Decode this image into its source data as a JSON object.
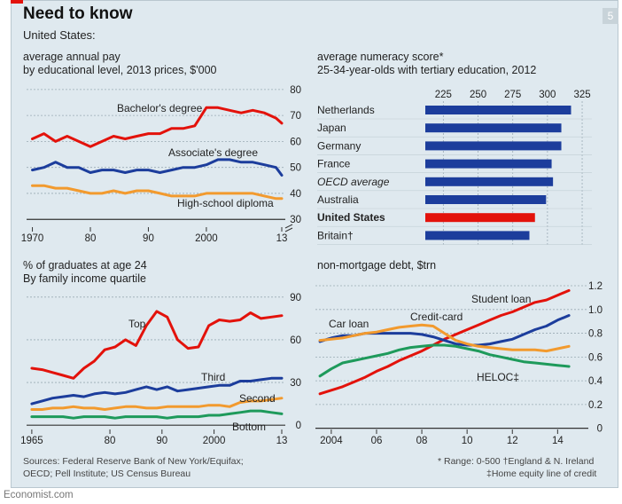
{
  "header": {
    "title": "Need to know",
    "page_number": "5",
    "subtitle": "United States:"
  },
  "colors": {
    "red": "#e3120b",
    "blue": "#1c3d9c",
    "orange": "#f29a2e",
    "green": "#1e9a5b",
    "bg": "#dfe9ef",
    "grid": "#9aaab4"
  },
  "chart_data": [
    {
      "type": "line",
      "title": "average annual pay",
      "subtitle": "by educational level, 2013 prices, $'000",
      "x": [
        1970,
        1972,
        1974,
        1976,
        1978,
        1980,
        1982,
        1984,
        1986,
        1988,
        1990,
        1992,
        1994,
        1996,
        1998,
        2000,
        2002,
        2004,
        2006,
        2008,
        2010,
        2012,
        2013
      ],
      "xlim": [
        1969,
        2013
      ],
      "ylim": [
        27,
        82
      ],
      "x_ticks": [
        1970,
        1980,
        1990,
        2000,
        2013
      ],
      "x_tick_labels": [
        "1970",
        "80",
        "90",
        "2000",
        "13"
      ],
      "y_ticks": [
        30,
        40,
        50,
        60,
        70,
        80
      ],
      "y_tick_labels": [
        "30",
        "40",
        "50",
        "60",
        "70",
        "80"
      ],
      "series": [
        {
          "name": "Bachelor's degree",
          "color": "red",
          "values": [
            61,
            63,
            60,
            62,
            60,
            58,
            60,
            62,
            61,
            62,
            63,
            63,
            65,
            65,
            66,
            73,
            73,
            72,
            71,
            72,
            71,
            69,
            67
          ]
        },
        {
          "name": "Associate's degree",
          "color": "blue",
          "values": [
            49,
            50,
            52,
            50,
            50,
            48,
            49,
            49,
            48,
            49,
            49,
            48,
            49,
            50,
            50,
            51,
            53,
            53,
            52,
            52,
            51,
            50,
            47
          ]
        },
        {
          "name": "High-school diploma",
          "color": "orange",
          "values": [
            43,
            43,
            42,
            42,
            41,
            40,
            40,
            41,
            40,
            41,
            41,
            40,
            39,
            39,
            39,
            40,
            40,
            40,
            40,
            40,
            39,
            38,
            38
          ]
        }
      ]
    },
    {
      "type": "bar",
      "title": "average numeracy score*",
      "subtitle": "25-34-year-olds with tertiary education, 2012",
      "categories": [
        "Netherlands",
        "Japan",
        "Germany",
        "France",
        "OECD average",
        "Australia",
        "United States",
        "Britain†"
      ],
      "values": [
        317,
        310,
        310,
        303,
        304,
        299,
        291,
        287
      ],
      "highlight": [
        false,
        false,
        false,
        false,
        false,
        false,
        true,
        false
      ],
      "italic": [
        false,
        false,
        false,
        false,
        true,
        false,
        false,
        false
      ],
      "bold": [
        false,
        false,
        false,
        false,
        false,
        false,
        true,
        false
      ],
      "xlim": [
        212,
        332
      ],
      "x_ticks": [
        225,
        250,
        275,
        300,
        325
      ]
    },
    {
      "type": "line",
      "title": "% of graduates at age 24",
      "subtitle": "By family income quartile",
      "x": [
        1965,
        1967,
        1969,
        1971,
        1973,
        1975,
        1977,
        1979,
        1981,
        1983,
        1985,
        1987,
        1989,
        1991,
        1993,
        1995,
        1997,
        1999,
        2001,
        2003,
        2005,
        2007,
        2009,
        2011,
        2013
      ],
      "xlim": [
        1964,
        2013
      ],
      "ylim": [
        -3,
        93
      ],
      "x_ticks": [
        1965,
        1980,
        1990,
        2000,
        2013
      ],
      "x_tick_labels": [
        "1965",
        "80",
        "90",
        "2000",
        "13"
      ],
      "y_ticks": [
        0,
        30,
        60,
        90
      ],
      "y_tick_labels": [
        "0",
        "30",
        "60",
        "90"
      ],
      "series": [
        {
          "name": "Top",
          "color": "red",
          "values": [
            40,
            39,
            37,
            35,
            33,
            40,
            45,
            53,
            55,
            60,
            56,
            70,
            80,
            76,
            60,
            54,
            55,
            70,
            74,
            73,
            74,
            79,
            75,
            76,
            77
          ]
        },
        {
          "name": "Third",
          "color": "blue",
          "values": [
            15,
            17,
            19,
            20,
            21,
            20,
            22,
            23,
            22,
            23,
            25,
            27,
            25,
            27,
            24,
            25,
            26,
            27,
            28,
            28,
            31,
            31,
            32,
            33,
            33
          ]
        },
        {
          "name": "Second",
          "color": "orange",
          "values": [
            11,
            11,
            12,
            12,
            13,
            12,
            12,
            11,
            12,
            13,
            13,
            12,
            12,
            13,
            13,
            13,
            13,
            14,
            14,
            13,
            16,
            17,
            17,
            18,
            19
          ]
        },
        {
          "name": "Bottom",
          "color": "green",
          "values": [
            6,
            6,
            6,
            6,
            5,
            6,
            6,
            6,
            5,
            6,
            6,
            6,
            6,
            5,
            6,
            6,
            6,
            7,
            7,
            8,
            9,
            10,
            10,
            9,
            8
          ]
        }
      ]
    },
    {
      "type": "line",
      "title": "non-mortgage debt, $trn",
      "x": [
        2003.5,
        2004,
        2004.5,
        2005,
        2005.5,
        2006,
        2006.5,
        2007,
        2007.5,
        2008,
        2008.5,
        2009,
        2009.5,
        2010,
        2010.5,
        2011,
        2011.5,
        2012,
        2012.5,
        2013,
        2013.5,
        2014,
        2014.5
      ],
      "xlim": [
        2003.3,
        2015.2
      ],
      "ylim": [
        -0.01,
        1.23
      ],
      "x_ticks": [
        2004,
        2006,
        2008,
        2010,
        2012,
        2014
      ],
      "x_tick_labels": [
        "2004",
        "06",
        "08",
        "10",
        "12",
        "14"
      ],
      "y_ticks": [
        0,
        0.2,
        0.4,
        0.6,
        0.8,
        1.0,
        1.2
      ],
      "y_tick_labels": [
        "0",
        "0.2",
        "0.4",
        "0.6",
        "0.8",
        "1.0",
        "1.2"
      ],
      "series": [
        {
          "name": "Student loan",
          "color": "red",
          "values": [
            0.29,
            0.32,
            0.35,
            0.39,
            0.43,
            0.48,
            0.52,
            0.57,
            0.61,
            0.65,
            0.7,
            0.75,
            0.79,
            0.83,
            0.87,
            0.91,
            0.95,
            0.98,
            1.02,
            1.06,
            1.08,
            1.12,
            1.16
          ]
        },
        {
          "name": "Car loan",
          "color": "blue",
          "values": [
            0.73,
            0.76,
            0.78,
            0.78,
            0.8,
            0.8,
            0.8,
            0.8,
            0.8,
            0.79,
            0.77,
            0.74,
            0.71,
            0.7,
            0.7,
            0.71,
            0.73,
            0.75,
            0.79,
            0.83,
            0.86,
            0.91,
            0.95
          ]
        },
        {
          "name": "Credit-card",
          "color": "orange",
          "values": [
            0.74,
            0.75,
            0.76,
            0.78,
            0.8,
            0.81,
            0.83,
            0.85,
            0.86,
            0.87,
            0.86,
            0.8,
            0.74,
            0.71,
            0.69,
            0.68,
            0.67,
            0.66,
            0.66,
            0.66,
            0.65,
            0.67,
            0.69
          ]
        },
        {
          "name": "HELOC‡",
          "color": "green",
          "values": [
            0.44,
            0.5,
            0.55,
            0.57,
            0.59,
            0.61,
            0.63,
            0.66,
            0.68,
            0.69,
            0.7,
            0.7,
            0.69,
            0.67,
            0.65,
            0.62,
            0.6,
            0.58,
            0.56,
            0.55,
            0.54,
            0.53,
            0.52
          ]
        }
      ]
    }
  ],
  "labels": {
    "pay_bachelor": "Bachelor's degree",
    "pay_associate": "Associate's degree",
    "pay_highschool": "High-school diploma",
    "grad_top": "Top",
    "grad_third": "Third",
    "grad_second": "Second",
    "grad_bottom": "Bottom",
    "debt_student": "Student loan",
    "debt_car": "Car loan",
    "debt_credit": "Credit-card",
    "debt_heloc": "HELOC‡"
  },
  "footer": {
    "sources_line1": "Sources: Federal Reserve Bank of New York/Equifax;",
    "sources_line2": "OECD; Pell Institute; US Census Bureau",
    "note_line1": "* Range: 0-500   †England & N. Ireland",
    "note_line2": "‡Home equity line of credit",
    "brand": "Economist.com"
  }
}
